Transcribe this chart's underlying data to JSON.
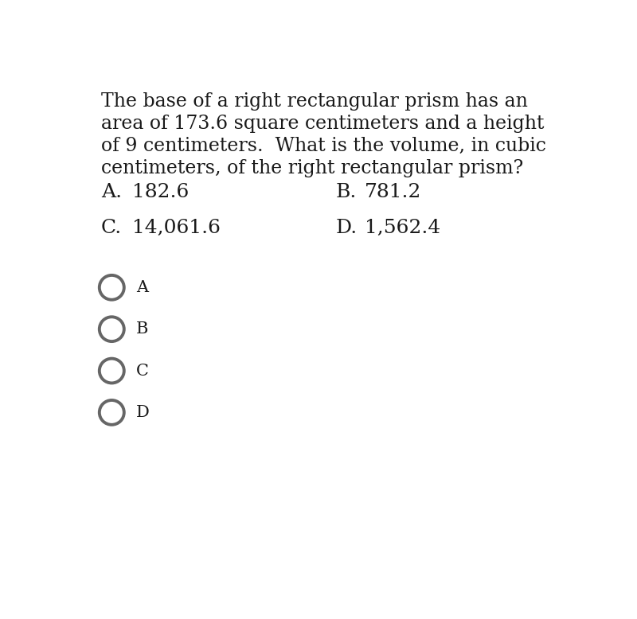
{
  "question_lines": [
    "The base of a right rectangular prism has an",
    "area of 173.6 square centimeters and a height",
    "of 9 centimeters.  What is the volume, in cubic",
    "centimeters, of the right rectangular prism?"
  ],
  "choices": [
    {
      "label": "A.",
      "value": "182.6"
    },
    {
      "label": "B.",
      "value": "781.2"
    },
    {
      "label": "C.",
      "value": "14,061.6"
    },
    {
      "label": "D.",
      "value": "1,562.4"
    }
  ],
  "radio_labels": [
    "A",
    "B",
    "C",
    "D"
  ],
  "bg_color": "#ffffff",
  "text_color": "#1a1a1a",
  "radio_color": "#666666",
  "font_size_question": 17,
  "font_size_choices": 18,
  "font_size_radio": 15
}
